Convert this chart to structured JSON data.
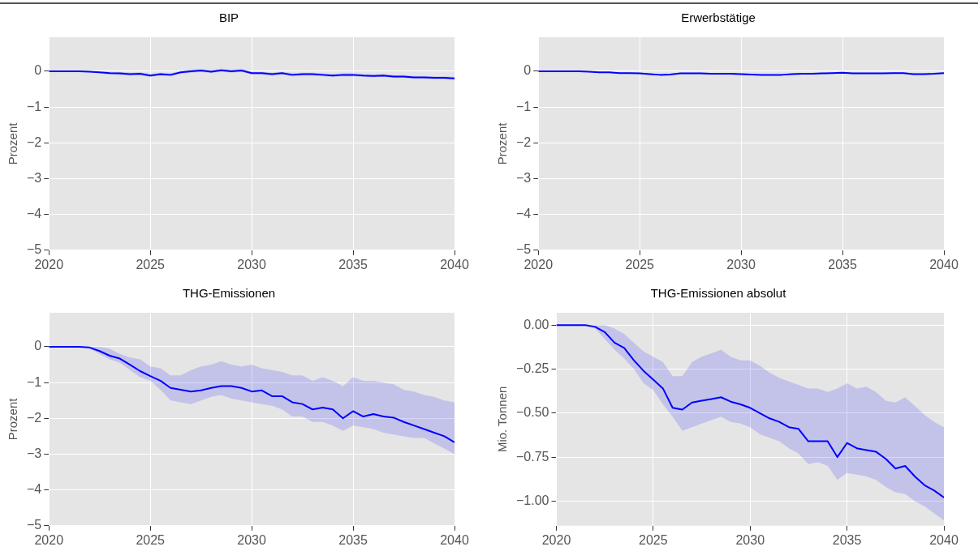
{
  "chart_data": [
    {
      "type": "line",
      "title": "BIP",
      "ylabel": "Prozent",
      "xlim": [
        2020,
        2040
      ],
      "xticks": [
        2020,
        2025,
        2030,
        2035,
        2040
      ],
      "ylim": [
        -5,
        0.95
      ],
      "yticks": [
        {
          "value": -5,
          "label": "−5"
        },
        {
          "value": -4,
          "label": "−4"
        },
        {
          "value": -3,
          "label": "−3"
        },
        {
          "value": -2,
          "label": "−2"
        },
        {
          "value": -1,
          "label": "−1"
        },
        {
          "value": 0,
          "label": "0"
        }
      ],
      "grid": true,
      "x": [
        2020,
        2020.5,
        2021,
        2021.5,
        2022,
        2022.5,
        2023,
        2023.5,
        2024,
        2024.5,
        2025,
        2025.5,
        2026,
        2026.5,
        2027,
        2027.5,
        2028,
        2028.5,
        2029,
        2029.5,
        2030,
        2030.5,
        2031,
        2031.5,
        2032,
        2032.5,
        2033,
        2033.5,
        2034,
        2034.5,
        2035,
        2035.5,
        2036,
        2036.5,
        2037,
        2037.5,
        2038,
        2038.5,
        2039,
        2039.5,
        2040
      ],
      "series": [
        {
          "color": "#0000ff",
          "values": [
            0,
            0,
            0,
            0,
            -0.01,
            -0.03,
            -0.05,
            -0.06,
            -0.08,
            -0.07,
            -0.12,
            -0.08,
            -0.1,
            -0.03,
            0,
            0.02,
            -0.01,
            0.03,
            0,
            0.02,
            -0.05,
            -0.05,
            -0.08,
            -0.05,
            -0.1,
            -0.08,
            -0.08,
            -0.1,
            -0.12,
            -0.1,
            -0.1,
            -0.12,
            -0.13,
            -0.12,
            -0.15,
            -0.15,
            -0.17,
            -0.17,
            -0.18,
            -0.18,
            -0.2
          ],
          "lower": [
            0,
            0,
            0,
            0,
            -0.02,
            -0.06,
            -0.09,
            -0.1,
            -0.12,
            -0.11,
            -0.16,
            -0.12,
            -0.14,
            -0.07,
            -0.04,
            -0.02,
            -0.05,
            -0.01,
            -0.04,
            -0.02,
            -0.09,
            -0.09,
            -0.12,
            -0.09,
            -0.14,
            -0.12,
            -0.12,
            -0.14,
            -0.16,
            -0.14,
            -0.14,
            -0.16,
            -0.17,
            -0.16,
            -0.19,
            -0.19,
            -0.21,
            -0.21,
            -0.22,
            -0.22,
            -0.24
          ],
          "upper": [
            0,
            0,
            0,
            0,
            0,
            0,
            -0.01,
            -0.02,
            -0.04,
            -0.03,
            -0.08,
            -0.04,
            -0.06,
            0.01,
            0.04,
            0.06,
            0.03,
            0.07,
            0.04,
            0.06,
            -0.01,
            -0.01,
            -0.04,
            -0.01,
            -0.06,
            -0.04,
            -0.04,
            -0.06,
            -0.08,
            -0.06,
            -0.06,
            -0.08,
            -0.09,
            -0.08,
            -0.11,
            -0.11,
            -0.13,
            -0.13,
            -0.14,
            -0.14,
            -0.16
          ]
        }
      ]
    },
    {
      "type": "line",
      "title": "Erwerbstätige",
      "ylabel": "Prozent",
      "xlim": [
        2020,
        2040
      ],
      "xticks": [
        2020,
        2025,
        2030,
        2035,
        2040
      ],
      "ylim": [
        -5,
        0.95
      ],
      "yticks": [
        {
          "value": -5,
          "label": "−5"
        },
        {
          "value": -4,
          "label": "−4"
        },
        {
          "value": -3,
          "label": "−3"
        },
        {
          "value": -2,
          "label": "−2"
        },
        {
          "value": -1,
          "label": "−1"
        },
        {
          "value": 0,
          "label": "0"
        }
      ],
      "grid": true,
      "x": [
        2020,
        2020.5,
        2021,
        2021.5,
        2022,
        2022.5,
        2023,
        2023.5,
        2024,
        2024.5,
        2025,
        2025.5,
        2026,
        2026.5,
        2027,
        2027.5,
        2028,
        2028.5,
        2029,
        2029.5,
        2030,
        2030.5,
        2031,
        2031.5,
        2032,
        2032.5,
        2033,
        2033.5,
        2034,
        2034.5,
        2035,
        2035.5,
        2036,
        2036.5,
        2037,
        2037.5,
        2038,
        2038.5,
        2039,
        2039.5,
        2040
      ],
      "series": [
        {
          "color": "#0000ff",
          "values": [
            0,
            0,
            0,
            0,
            0,
            -0.01,
            -0.03,
            -0.03,
            -0.05,
            -0.05,
            -0.06,
            -0.08,
            -0.1,
            -0.09,
            -0.06,
            -0.06,
            -0.06,
            -0.07,
            -0.07,
            -0.07,
            -0.08,
            -0.09,
            -0.1,
            -0.1,
            -0.1,
            -0.08,
            -0.07,
            -0.07,
            -0.06,
            -0.05,
            -0.04,
            -0.06,
            -0.06,
            -0.06,
            -0.06,
            -0.05,
            -0.05,
            -0.08,
            -0.08,
            -0.07,
            -0.05
          ],
          "lower": [
            0,
            0,
            0,
            0,
            0,
            -0.02,
            -0.05,
            -0.05,
            -0.07,
            -0.07,
            -0.08,
            -0.1,
            -0.12,
            -0.11,
            -0.08,
            -0.08,
            -0.08,
            -0.09,
            -0.09,
            -0.09,
            -0.1,
            -0.11,
            -0.12,
            -0.12,
            -0.12,
            -0.1,
            -0.09,
            -0.09,
            -0.08,
            -0.07,
            -0.06,
            -0.08,
            -0.08,
            -0.08,
            -0.08,
            -0.07,
            -0.07,
            -0.1,
            -0.1,
            -0.09,
            -0.07
          ],
          "upper": [
            0,
            0,
            0,
            0,
            0,
            0,
            -0.01,
            -0.01,
            -0.03,
            -0.03,
            -0.04,
            -0.06,
            -0.08,
            -0.07,
            -0.04,
            -0.04,
            -0.04,
            -0.05,
            -0.05,
            -0.05,
            -0.06,
            -0.07,
            -0.08,
            -0.08,
            -0.08,
            -0.06,
            -0.05,
            -0.05,
            -0.04,
            -0.03,
            -0.02,
            -0.04,
            -0.04,
            -0.04,
            -0.04,
            -0.03,
            -0.03,
            -0.06,
            -0.06,
            -0.05,
            -0.03
          ]
        }
      ]
    },
    {
      "type": "line",
      "title": "THG-Emissionen",
      "ylabel": "Prozent",
      "xlim": [
        2020,
        2040
      ],
      "xticks": [
        2020,
        2025,
        2030,
        2035,
        2040
      ],
      "ylim": [
        -5,
        0.95
      ],
      "yticks": [
        {
          "value": -5,
          "label": "−5"
        },
        {
          "value": -4,
          "label": "−4"
        },
        {
          "value": -3,
          "label": "−3"
        },
        {
          "value": -2,
          "label": "−2"
        },
        {
          "value": -1,
          "label": "−1"
        },
        {
          "value": 0,
          "label": "0"
        }
      ],
      "grid": true,
      "x": [
        2020,
        2020.5,
        2021,
        2021.5,
        2022,
        2022.5,
        2023,
        2023.5,
        2024,
        2024.5,
        2025,
        2025.5,
        2026,
        2026.5,
        2027,
        2027.5,
        2028,
        2028.5,
        2029,
        2029.5,
        2030,
        2030.5,
        2031,
        2031.5,
        2032,
        2032.5,
        2033,
        2033.5,
        2034,
        2034.5,
        2035,
        2035.5,
        2036,
        2036.5,
        2037,
        2037.5,
        2038,
        2038.5,
        2039,
        2039.5,
        2040
      ],
      "series": [
        {
          "color": "#0000ff",
          "values": [
            0,
            0,
            0,
            0,
            -0.02,
            -0.12,
            -0.25,
            -0.33,
            -0.5,
            -0.68,
            -0.82,
            -0.95,
            -1.15,
            -1.2,
            -1.25,
            -1.22,
            -1.15,
            -1.1,
            -1.1,
            -1.15,
            -1.25,
            -1.22,
            -1.38,
            -1.38,
            -1.55,
            -1.6,
            -1.75,
            -1.7,
            -1.75,
            -2,
            -1.8,
            -1.95,
            -1.88,
            -1.95,
            -1.98,
            -2.1,
            -2.2,
            -2.3,
            -2.4,
            -2.5,
            -2.67
          ],
          "lower": [
            0,
            0,
            0,
            0,
            -0.05,
            -0.2,
            -0.35,
            -0.45,
            -0.65,
            -0.85,
            -0.95,
            -1.2,
            -1.5,
            -1.55,
            -1.6,
            -1.5,
            -1.4,
            -1.35,
            -1.45,
            -1.5,
            -1.55,
            -1.6,
            -1.65,
            -1.75,
            -1.95,
            -1.95,
            -2.1,
            -2.1,
            -2.2,
            -2.35,
            -2.2,
            -2.25,
            -2.3,
            -2.4,
            -2.45,
            -2.5,
            -2.55,
            -2.55,
            -2.7,
            -2.85,
            -3
          ],
          "upper": [
            0,
            0,
            0,
            0,
            0,
            0,
            -0.05,
            -0.2,
            -0.3,
            -0.35,
            -0.55,
            -0.6,
            -0.8,
            -0.8,
            -0.65,
            -0.55,
            -0.5,
            -0.4,
            -0.5,
            -0.55,
            -0.5,
            -0.6,
            -0.65,
            -0.7,
            -0.8,
            -0.8,
            -0.95,
            -0.85,
            -0.95,
            -1.1,
            -0.85,
            -0.95,
            -0.95,
            -1,
            -1.05,
            -1.2,
            -1.25,
            -1.35,
            -1.4,
            -1.5,
            -1.55
          ]
        }
      ]
    },
    {
      "type": "line",
      "title": "THG-Emissionen absolut",
      "ylabel": "Mio. Tonnen",
      "xlim": [
        2020,
        2040
      ],
      "xticks": [
        2020,
        2025,
        2030,
        2035,
        2040
      ],
      "ylim": [
        -1.14,
        0.07
      ],
      "yticks": [
        {
          "value": -1,
          "label": "−1.00"
        },
        {
          "value": -0.75,
          "label": "−0.75"
        },
        {
          "value": -0.5,
          "label": "−0.50"
        },
        {
          "value": -0.25,
          "label": "−0.25"
        },
        {
          "value": 0,
          "label": "0.00"
        }
      ],
      "grid": true,
      "x": [
        2020,
        2020.5,
        2021,
        2021.5,
        2022,
        2022.5,
        2023,
        2023.5,
        2024,
        2024.5,
        2025,
        2025.5,
        2026,
        2026.5,
        2027,
        2027.5,
        2028,
        2028.5,
        2029,
        2029.5,
        2030,
        2030.5,
        2031,
        2031.5,
        2032,
        2032.5,
        2033,
        2033.5,
        2034,
        2034.5,
        2035,
        2035.5,
        2036,
        2036.5,
        2037,
        2037.5,
        2038,
        2038.5,
        2039,
        2039.5,
        2040
      ],
      "series": [
        {
          "color": "#0000ff",
          "values": [
            0,
            0,
            0,
            0,
            -0.01,
            -0.04,
            -0.1,
            -0.13,
            -0.2,
            -0.26,
            -0.31,
            -0.36,
            -0.47,
            -0.48,
            -0.44,
            -0.43,
            -0.42,
            -0.41,
            -0.435,
            -0.45,
            -0.47,
            -0.5,
            -0.53,
            -0.55,
            -0.58,
            -0.59,
            -0.66,
            -0.66,
            -0.66,
            -0.75,
            -0.67,
            -0.7,
            -0.71,
            -0.72,
            -0.76,
            -0.815,
            -0.8,
            -0.86,
            -0.91,
            -0.94,
            -0.98
          ],
          "lower": [
            0,
            0,
            0,
            0,
            -0.02,
            -0.08,
            -0.14,
            -0.19,
            -0.25,
            -0.33,
            -0.37,
            -0.45,
            -0.52,
            -0.6,
            -0.58,
            -0.56,
            -0.54,
            -0.52,
            -0.55,
            -0.56,
            -0.58,
            -0.62,
            -0.64,
            -0.66,
            -0.7,
            -0.73,
            -0.79,
            -0.78,
            -0.8,
            -0.88,
            -0.84,
            -0.85,
            -0.86,
            -0.88,
            -0.92,
            -0.95,
            -0.96,
            -1,
            -1.03,
            -1.07,
            -1.11
          ],
          "upper": [
            0,
            0,
            0,
            0,
            0,
            0,
            -0.02,
            -0.05,
            -0.1,
            -0.15,
            -0.18,
            -0.21,
            -0.29,
            -0.29,
            -0.21,
            -0.18,
            -0.16,
            -0.14,
            -0.18,
            -0.2,
            -0.2,
            -0.23,
            -0.27,
            -0.3,
            -0.32,
            -0.34,
            -0.36,
            -0.36,
            -0.38,
            -0.36,
            -0.33,
            -0.36,
            -0.35,
            -0.38,
            -0.43,
            -0.44,
            -0.41,
            -0.46,
            -0.51,
            -0.55,
            -0.58
          ]
        }
      ]
    }
  ]
}
